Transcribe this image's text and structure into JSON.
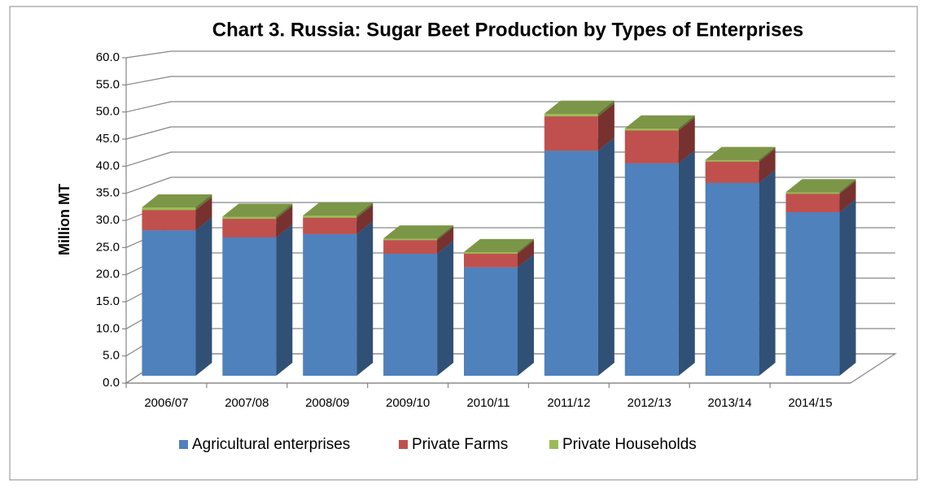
{
  "chart_data": {
    "type": "bar3d_stacked",
    "title": "Chart 3. Russia: Sugar Beet Production by Types of Enterprises",
    "y_label": "Million  MT",
    "categories": [
      "2006/07",
      "2007/08",
      "2008/09",
      "2009/10",
      "2010/11",
      "2011/12",
      "2012/13",
      "2013/14",
      "2014/15"
    ],
    "series": [
      {
        "name": "Agricultural enterprises",
        "color": "#4f81bd",
        "values": [
          26.7,
          25.4,
          26.0,
          22.4,
          19.9,
          41.3,
          39.0,
          35.4,
          30.0
        ]
      },
      {
        "name": "Private Farms",
        "color": "#c0504d",
        "values": [
          3.7,
          3.4,
          3.0,
          2.5,
          2.5,
          6.3,
          6.0,
          3.9,
          3.4
        ]
      },
      {
        "name": "Private Households",
        "color": "#9bbb59",
        "values": [
          0.5,
          0.4,
          0.4,
          0.3,
          0.3,
          0.5,
          0.4,
          0.3,
          0.3
        ]
      }
    ],
    "ylim": [
      0,
      60
    ],
    "yticks": [
      {
        "value": 0,
        "label": "0.0"
      },
      {
        "value": 5,
        "label": "5.0"
      },
      {
        "value": 10,
        "label": "10.0"
      },
      {
        "value": 15,
        "label": "15.0"
      },
      {
        "value": 20,
        "label": "20.0"
      },
      {
        "value": 25,
        "label": "25.0"
      },
      {
        "value": 30,
        "label": "30.0"
      },
      {
        "value": 35,
        "label": "35.0"
      },
      {
        "value": 40,
        "label": "40.0"
      },
      {
        "value": 45,
        "label": "45.0"
      },
      {
        "value": 50,
        "label": "50.0"
      },
      {
        "value": 55,
        "label": "55.0"
      },
      {
        "value": 60,
        "label": "60.0"
      }
    ],
    "grid": true,
    "legend": "bottom"
  }
}
